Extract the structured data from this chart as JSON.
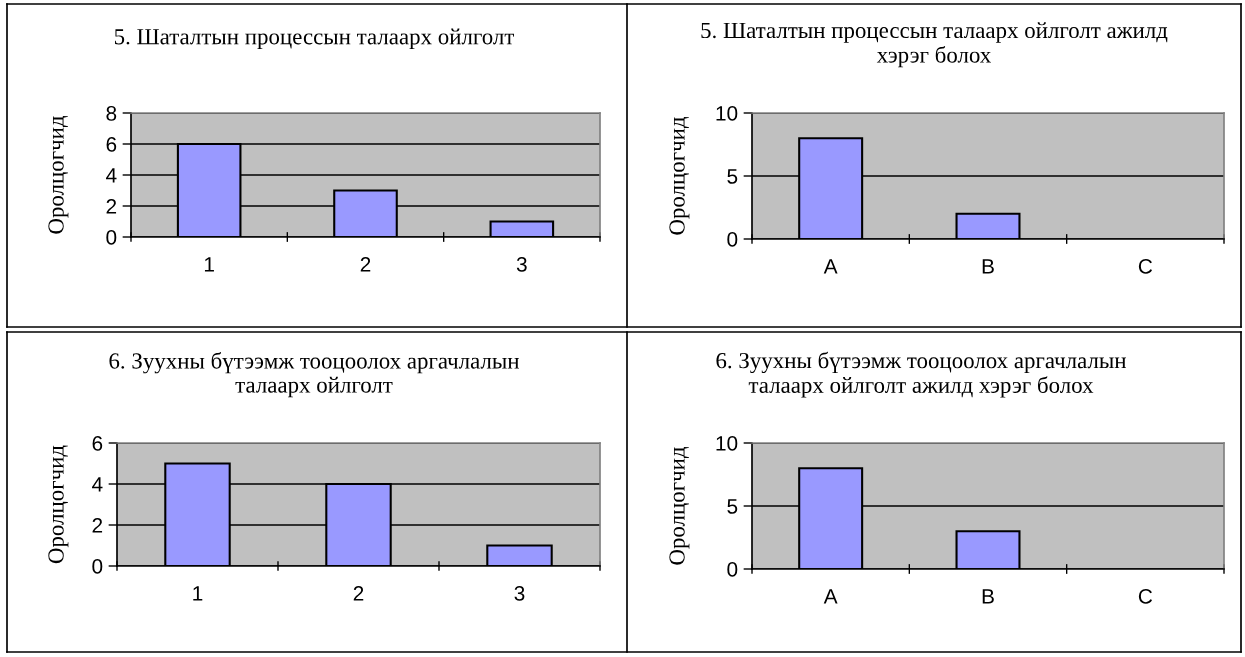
{
  "chart_data": [
    {
      "type": "bar",
      "title": "5. Шаталтын процессын талаарх ойлголт",
      "ylabel": "Оролцогчид",
      "categories": [
        "1",
        "2",
        "3"
      ],
      "values": [
        6,
        3,
        1
      ],
      "color": "#9999ff",
      "ylim": [
        0,
        8
      ],
      "yticks": [
        0,
        2,
        4,
        6,
        8
      ],
      "grid": "y"
    },
    {
      "type": "bar",
      "title": "5. Шаталтын процессын талаарх ойлголт ажилд\nхэрэг болох",
      "ylabel": "Оролцогчид",
      "categories": [
        "A",
        "B",
        "C"
      ],
      "values": [
        8,
        2,
        0
      ],
      "color": "#9999ff",
      "ylim": [
        0,
        10
      ],
      "yticks": [
        0,
        5,
        10
      ],
      "grid": "y"
    },
    {
      "type": "bar",
      "title": "6. Зуухны бүтээмж тооцоолох аргачлалын\nталаарх ойлголт",
      "ylabel": "Оролцогчид",
      "categories": [
        "1",
        "2",
        "3"
      ],
      "values": [
        5,
        4,
        1
      ],
      "color": "#9999ff",
      "ylim": [
        0,
        6
      ],
      "yticks": [
        0,
        2,
        4,
        6
      ],
      "grid": "y"
    },
    {
      "type": "bar",
      "title": "6. Зуухны бүтээмж тооцоолох аргачлалын\nталаарх ойлголт ажилд хэрэг болох",
      "ylabel": "Оролцогчид",
      "categories": [
        "A",
        "B",
        "C"
      ],
      "values": [
        8,
        3,
        0
      ],
      "color": "#9999ff",
      "ylim": [
        0,
        10
      ],
      "yticks": [
        0,
        5,
        10
      ],
      "grid": "y"
    }
  ]
}
